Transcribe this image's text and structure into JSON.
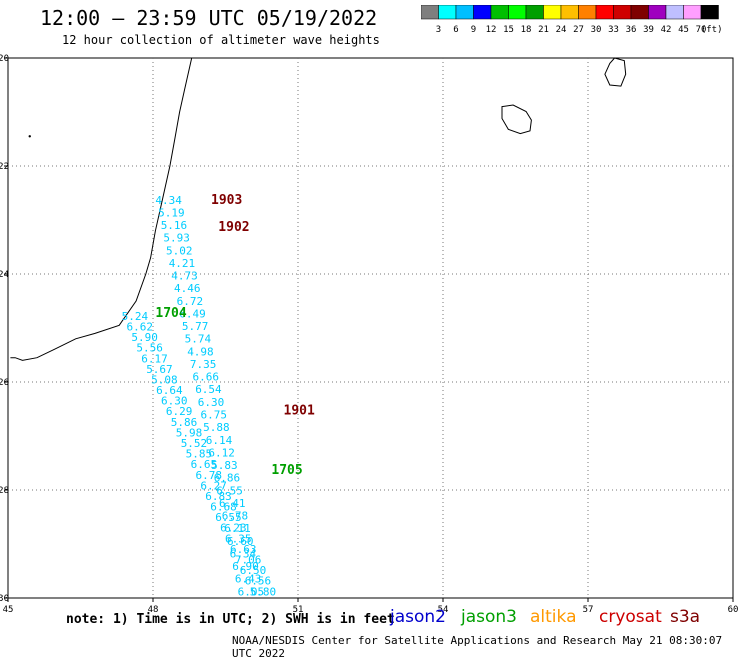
{
  "header": {
    "title": "12:00 — 23:59 UTC 05/19/2022",
    "subtitle": "12 hour collection of altimeter wave heights"
  },
  "scale": {
    "colors": [
      "#7f7f7f",
      "#00ffff",
      "#00bfff",
      "#0000ff",
      "#00bf00",
      "#00ff00",
      "#009f00",
      "#ffff00",
      "#ffbf00",
      "#ff8000",
      "#ff0000",
      "#cf0000",
      "#7f0000",
      "#9f00bf",
      "#bfbfff",
      "#ff9fff",
      "#000000"
    ],
    "labels": [
      "3",
      "6",
      "9",
      "12",
      "15",
      "18",
      "21",
      "24",
      "27",
      "30",
      "33",
      "36",
      "39",
      "42",
      "45",
      "70"
    ],
    "unit": "(ft)"
  },
  "axes": {
    "lon_ticks": [
      "45",
      "48",
      "51",
      "54",
      "57",
      "60"
    ],
    "lat_ticks": [
      "-20",
      "-22",
      "-24",
      "-26",
      "-28",
      "-30"
    ]
  },
  "passes": [
    {
      "label": "1903",
      "color": "#7f0000",
      "lon": 49.2,
      "lat": -22.7
    },
    {
      "label": "1902",
      "color": "#7f0000",
      "lon": 49.35,
      "lat": -23.2
    },
    {
      "label": "1704",
      "color": "#009f00",
      "lon": 48.05,
      "lat": -24.8
    },
    {
      "label": "1901",
      "color": "#7f0000",
      "lon": 50.7,
      "lat": -26.6
    },
    {
      "label": "1705",
      "color": "#009f00",
      "lon": 50.45,
      "lat": -27.7
    }
  ],
  "track_a": {
    "color": "#00ccff",
    "values": [
      "4.34",
      "5.19",
      "5.16",
      "5.93",
      "5.02",
      "4.21",
      "4.73",
      "4.46",
      "6.72",
      "6.49",
      "5.77",
      "5.74",
      "4.98",
      "7.35",
      "6.66",
      "6.54",
      "6.30",
      "6.75",
      "5.88",
      "6.14",
      "6.12",
      "5.83",
      "6.86",
      "6.55",
      "6.41",
      "6.78",
      "6.11",
      "6.60",
      "6.34",
      "6.90",
      "6.43",
      "6.05"
    ]
  },
  "track_b": {
    "color": "#00ccff",
    "values": [
      "5.24",
      "6.62",
      "5.90",
      "5.56",
      "6.17",
      "5.67",
      "5.08",
      "6.64",
      "6.30",
      "6.29",
      "5.86",
      "5.98",
      "5.52",
      "5.85",
      "6.65",
      "6.78",
      "6.27",
      "6.83",
      "6.68",
      "6.55",
      "6.23",
      "6.35",
      "6.63",
      "7.06",
      "6.50",
      "6.56",
      "5.80"
    ]
  },
  "footer": {
    "note": "note:  1) Time is in UTC; 2) SWH is in feet",
    "satellites": [
      {
        "name": "jason2",
        "color": "#0000cc"
      },
      {
        "name": "jason3",
        "color": "#009f00"
      },
      {
        "name": "altika",
        "color": "#ff9900"
      },
      {
        "name": "cryosat",
        "color": "#cc0000"
      },
      {
        "name": "s3a",
        "color": "#7f0000"
      }
    ],
    "credit": "NOAA/NESDIS Center for Satellite Applications and Research    May 21 08:30:07 UTC 2022"
  }
}
